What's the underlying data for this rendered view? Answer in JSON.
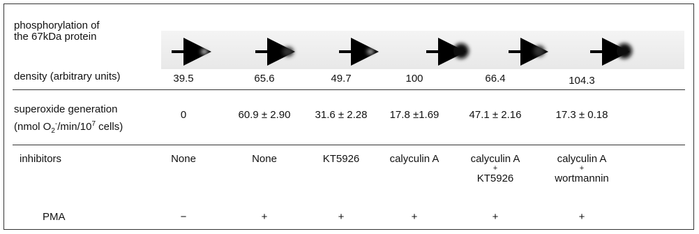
{
  "rows": [
    {
      "label": [
        "phosphorylation of",
        "the 67kDa protein"
      ]
    },
    {
      "label": "density (arbitrary units)",
      "cells": [
        39.5,
        65.6,
        49.7,
        100,
        66.4,
        104.3
      ]
    },
    {
      "label": [
        "superoxide generation",
        "(nmol O",
        "2",
        "-",
        "/min/10",
        "7",
        " cells)"
      ],
      "cells": [
        "0",
        "60.9 ± 2.90",
        "31.6 ± 2.28",
        "17.8 ±1.69",
        "47.1 ± 2.16",
        "17.3 ± 0.18"
      ]
    },
    {
      "label": "inhibitors",
      "cells": [
        [
          "None"
        ],
        [
          "None"
        ],
        [
          "KT5926"
        ],
        [
          "calyculin A"
        ],
        [
          "calyculin A",
          "+",
          "KT5926"
        ],
        [
          "calyculin A",
          "+",
          "wortmannin"
        ]
      ]
    },
    {
      "label": "PMA",
      "cells": [
        "−",
        "+",
        "+",
        "+",
        "+",
        "+"
      ]
    }
  ]
}
